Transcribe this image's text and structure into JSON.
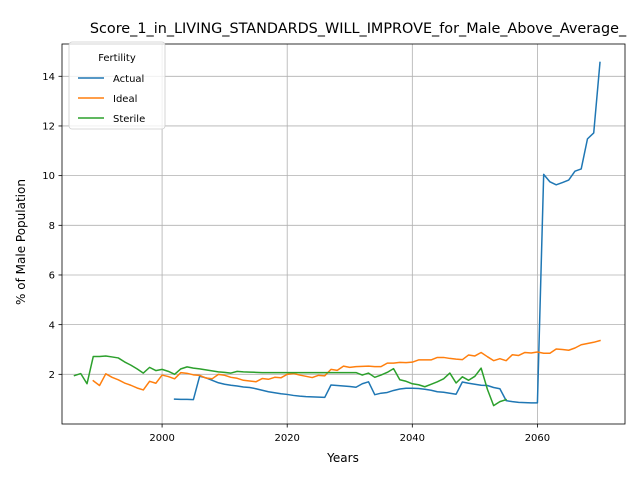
{
  "chart_data": {
    "type": "line",
    "title": "Score_1_in_LIVING_STANDARDS_WILL_IMPROVE_for_Male_Above_Average_",
    "xlabel": "Years",
    "ylabel": "% of Male Population",
    "xlim": [
      1984,
      2074
    ],
    "ylim": [
      0.0,
      15.3
    ],
    "x_ticks": [
      2000,
      2020,
      2040,
      2060
    ],
    "y_ticks": [
      2,
      4,
      6,
      8,
      10,
      12,
      14
    ],
    "grid": true,
    "legend": {
      "title": "Fertility",
      "placement": "top-left"
    },
    "series": [
      {
        "name": "Actual",
        "color": "#1f77b4",
        "x": [
          2002,
          2003,
          2004,
          2005,
          2006,
          2007,
          2008,
          2009,
          2010,
          2011,
          2012,
          2013,
          2014,
          2015,
          2016,
          2017,
          2018,
          2019,
          2020,
          2021,
          2022,
          2023,
          2024,
          2025,
          2026,
          2027,
          2028,
          2029,
          2030,
          2031,
          2032,
          2033,
          2034,
          2035,
          2036,
          2037,
          2038,
          2039,
          2040,
          2041,
          2042,
          2043,
          2044,
          2045,
          2046,
          2047,
          2048,
          2049,
          2050,
          2051,
          2052,
          2053,
          2054,
          2055,
          2056,
          2057,
          2058,
          2059,
          2060,
          2061,
          2062,
          2063,
          2064,
          2065,
          2066,
          2067,
          2068,
          2069,
          2070
        ],
        "values": [
          1.0,
          0.99,
          0.99,
          0.98,
          1.92,
          1.86,
          1.76,
          1.66,
          1.6,
          1.56,
          1.53,
          1.49,
          1.47,
          1.42,
          1.36,
          1.3,
          1.26,
          1.22,
          1.19,
          1.15,
          1.12,
          1.1,
          1.09,
          1.08,
          1.07,
          1.57,
          1.55,
          1.53,
          1.51,
          1.48,
          1.62,
          1.7,
          1.18,
          1.24,
          1.27,
          1.35,
          1.41,
          1.44,
          1.44,
          1.43,
          1.4,
          1.36,
          1.3,
          1.28,
          1.24,
          1.2,
          1.69,
          1.64,
          1.6,
          1.56,
          1.55,
          1.47,
          1.42,
          0.94,
          0.9,
          0.87,
          0.86,
          0.85,
          0.85,
          10.05,
          9.75,
          9.63,
          9.72,
          9.82,
          10.18,
          10.27,
          11.48,
          11.72,
          14.56
        ]
      },
      {
        "name": "Ideal",
        "color": "#ff7f0e",
        "x": [
          1989,
          1990,
          1991,
          1992,
          1993,
          1994,
          1995,
          1996,
          1997,
          1998,
          1999,
          2000,
          2001,
          2002,
          2003,
          2004,
          2005,
          2006,
          2007,
          2008,
          2009,
          2010,
          2011,
          2012,
          2013,
          2014,
          2015,
          2016,
          2017,
          2018,
          2019,
          2020,
          2021,
          2022,
          2023,
          2024,
          2025,
          2026,
          2027,
          2028,
          2029,
          2030,
          2031,
          2032,
          2033,
          2034,
          2035,
          2036,
          2037,
          2038,
          2039,
          2040,
          2041,
          2042,
          2043,
          2044,
          2045,
          2046,
          2047,
          2048,
          2049,
          2050,
          2051,
          2052,
          2053,
          2054,
          2055,
          2056,
          2057,
          2058,
          2059,
          2060,
          2061,
          2062,
          2063,
          2064,
          2065,
          2066,
          2067,
          2068,
          2069,
          2070
        ],
        "values": [
          1.74,
          1.55,
          2.02,
          1.88,
          1.78,
          1.65,
          1.56,
          1.45,
          1.37,
          1.72,
          1.64,
          1.97,
          1.91,
          1.82,
          2.07,
          2.04,
          1.98,
          1.96,
          1.85,
          1.82,
          2.0,
          1.96,
          1.88,
          1.84,
          1.76,
          1.73,
          1.7,
          1.83,
          1.8,
          1.88,
          1.86,
          2.0,
          2.03,
          1.97,
          1.92,
          1.87,
          1.96,
          1.94,
          2.2,
          2.16,
          2.33,
          2.28,
          2.31,
          2.32,
          2.33,
          2.31,
          2.31,
          2.45,
          2.45,
          2.48,
          2.47,
          2.49,
          2.58,
          2.58,
          2.58,
          2.68,
          2.68,
          2.64,
          2.61,
          2.59,
          2.78,
          2.74,
          2.88,
          2.71,
          2.55,
          2.63,
          2.55,
          2.79,
          2.76,
          2.88,
          2.86,
          2.9,
          2.85,
          2.85,
          3.02,
          3.0,
          2.97,
          3.06,
          3.19,
          3.24,
          3.29,
          3.36
        ]
      },
      {
        "name": "Sterile",
        "color": "#2ca02c",
        "x": [
          1986,
          1987,
          1988,
          1989,
          1990,
          1991,
          1992,
          1993,
          1994,
          1995,
          1996,
          1997,
          1998,
          1999,
          2000,
          2001,
          2002,
          2003,
          2004,
          2005,
          2006,
          2007,
          2008,
          2009,
          2010,
          2011,
          2012,
          2013,
          2014,
          2015,
          2016,
          2017,
          2018,
          2019,
          2020,
          2021,
          2022,
          2023,
          2024,
          2025,
          2026,
          2027,
          2028,
          2029,
          2030,
          2031,
          2032,
          2033,
          2034,
          2035,
          2036,
          2037,
          2038,
          2039,
          2040,
          2041,
          2042,
          2043,
          2044,
          2045,
          2046,
          2047,
          2048,
          2049,
          2050,
          2051,
          2052,
          2053,
          2054,
          2055
        ],
        "values": [
          1.95,
          2.03,
          1.62,
          2.72,
          2.72,
          2.74,
          2.7,
          2.66,
          2.5,
          2.37,
          2.22,
          2.05,
          2.28,
          2.15,
          2.2,
          2.12,
          2.0,
          2.22,
          2.3,
          2.25,
          2.22,
          2.18,
          2.14,
          2.1,
          2.08,
          2.05,
          2.12,
          2.1,
          2.09,
          2.08,
          2.07,
          2.07,
          2.07,
          2.07,
          2.07,
          2.07,
          2.07,
          2.07,
          2.07,
          2.07,
          2.07,
          2.07,
          2.07,
          2.07,
          2.07,
          2.07,
          1.97,
          2.05,
          1.88,
          1.97,
          2.08,
          2.23,
          1.78,
          1.72,
          1.62,
          1.58,
          1.5,
          1.6,
          1.7,
          1.82,
          2.05,
          1.65,
          1.9,
          1.76,
          1.92,
          2.25,
          1.4,
          0.74,
          0.9,
          0.98
        ]
      }
    ]
  }
}
